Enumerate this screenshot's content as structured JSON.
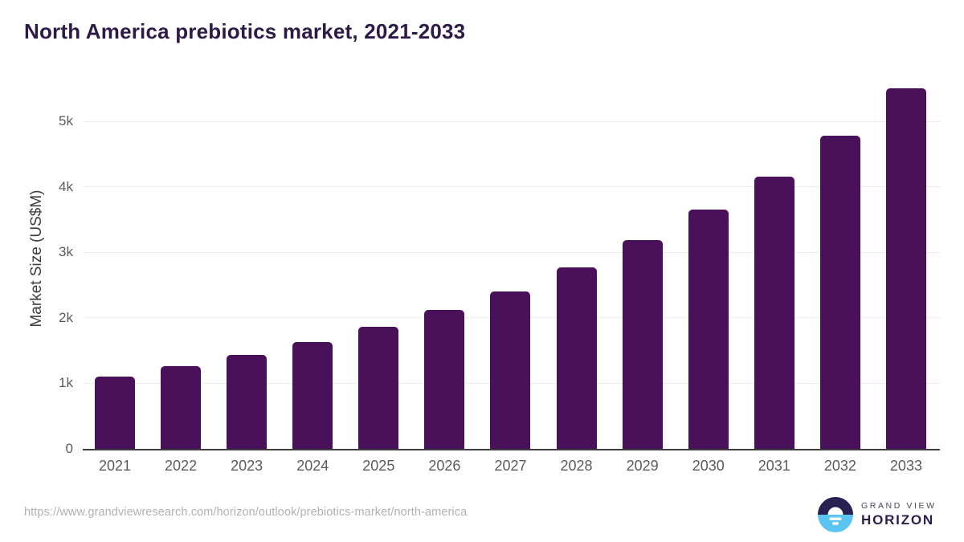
{
  "header": {
    "title": "North America prebiotics market, 2021-2033"
  },
  "chart_data": {
    "type": "bar",
    "title": "North America prebiotics market, 2021-2033",
    "categories": [
      "2021",
      "2022",
      "2023",
      "2024",
      "2025",
      "2026",
      "2027",
      "2028",
      "2029",
      "2030",
      "2031",
      "2032",
      "2033"
    ],
    "values": [
      1100,
      1260,
      1435,
      1630,
      1860,
      2120,
      2405,
      2775,
      3190,
      3650,
      4160,
      4780,
      5500
    ],
    "unit": "US$M",
    "xlabel": "",
    "ylabel": "Market Size (US$M)",
    "ylim": [
      0,
      5800
    ],
    "yticks": [
      {
        "value": 0,
        "label": "0"
      },
      {
        "value": 1000,
        "label": "1k"
      },
      {
        "value": 2000,
        "label": "2k"
      },
      {
        "value": 3000,
        "label": "3k"
      },
      {
        "value": 4000,
        "label": "4k"
      },
      {
        "value": 5000,
        "label": "5k"
      }
    ],
    "grid": true,
    "legend": "none",
    "bar_color": "#49115a"
  },
  "footer": {
    "source_url": "https://www.grandviewresearch.com/horizon/outlook/prebiotics-market/north-america",
    "logo": {
      "line1": "GRAND VIEW",
      "line2": "HORIZON"
    }
  },
  "colors": {
    "title_text": "#2e1a47",
    "bar": "#49115a",
    "axis_line": "#3c3c3c",
    "gridline": "#ececee",
    "tick_text": "#5b5b5b",
    "url_text": "#b3b1ae",
    "logo_dark": "#2b2150",
    "logo_blue": "#5bc5f2"
  }
}
